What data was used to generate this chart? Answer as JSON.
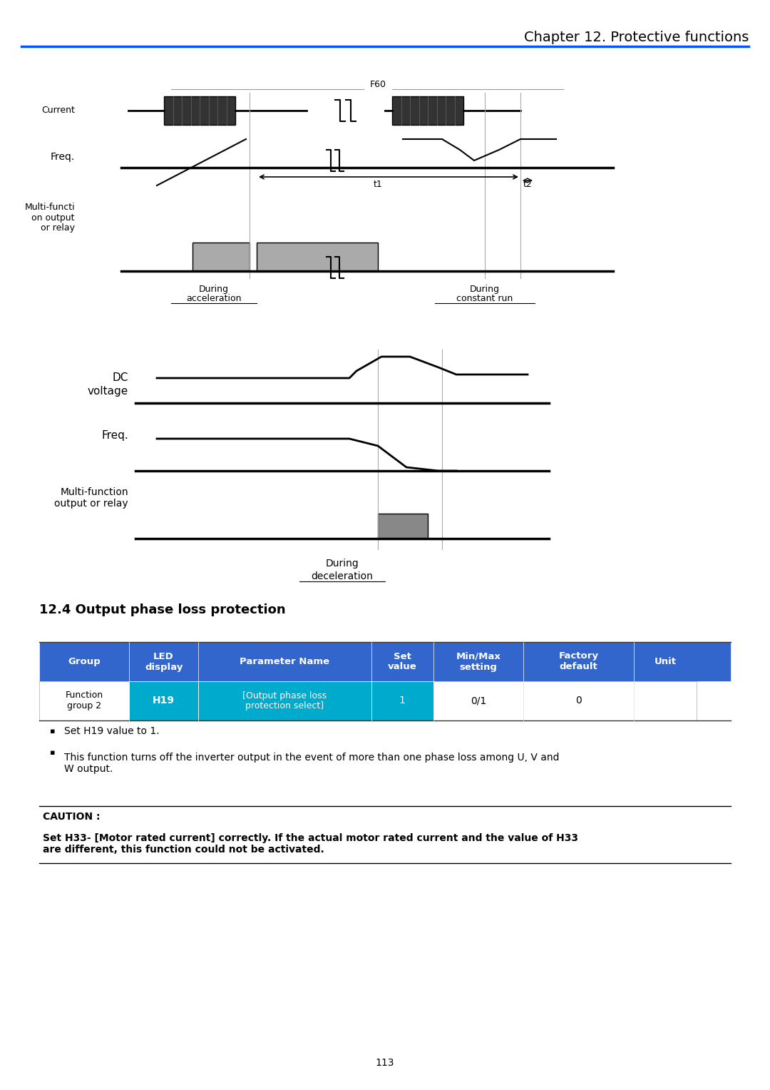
{
  "title": "Chapter 12. Protective functions",
  "page_number": "113",
  "section_title": "12.4 Output phase loss protection",
  "table_header_color": "#3366CC",
  "table_cyan_color": "#00AACC",
  "table_header_text_color": "#FFFFFF",
  "table_headers": [
    "Group",
    "LED\ndisplay",
    "Parameter Name",
    "Set\nvalue",
    "Min/Max\nsetting",
    "Factory\ndefault",
    "Unit"
  ],
  "table_row": [
    "Function\ngroup 2",
    "H19",
    "[Output phase loss\nprotection select]",
    "1",
    "0/1",
    "0",
    ""
  ],
  "bullet1": "Set H19 value to 1.",
  "bullet2": "This function turns off the inverter output in the event of more than one phase loss among U, V and\nW output.",
  "caution_title": "CAUTION :",
  "caution_text": "Set H33- [Motor rated current] correctly. If the actual motor rated current and the value of H33\nare different, this function could not be activated."
}
